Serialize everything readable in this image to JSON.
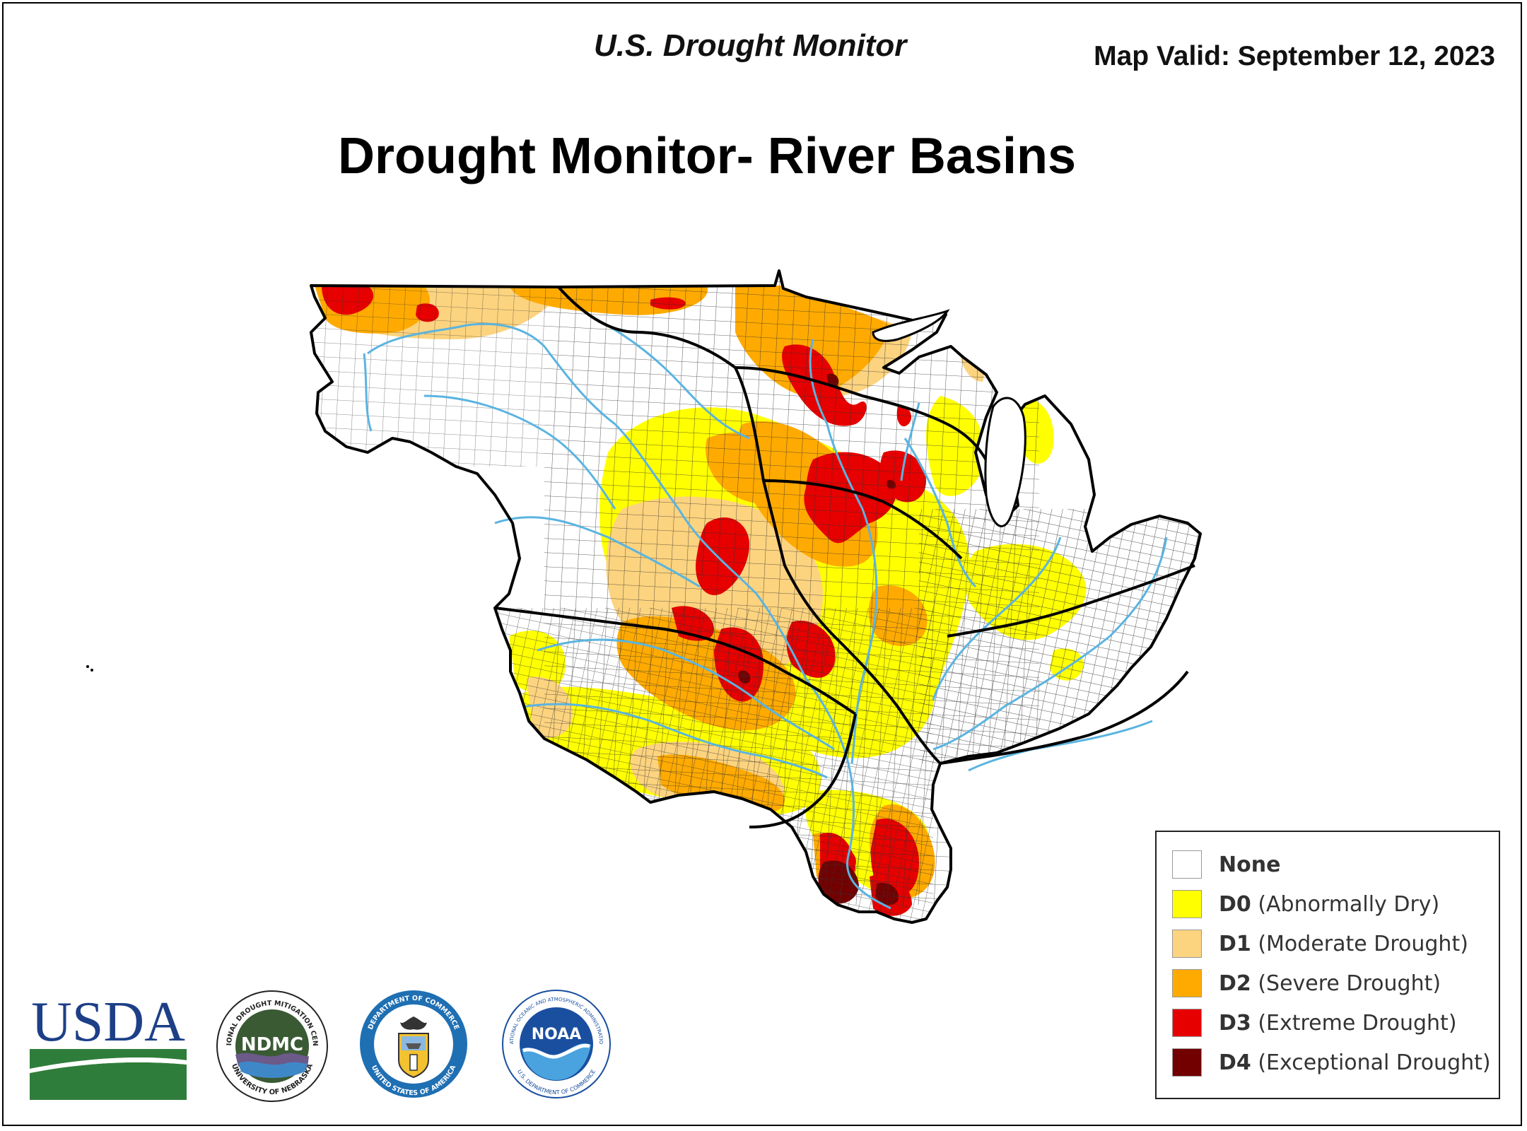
{
  "header": {
    "product": "U.S. Drought Monitor",
    "valid": "Map Valid: September 12, 2023",
    "title": "Drought Monitor- River Basins"
  },
  "legend": {
    "items": [
      {
        "code": "",
        "label": "None",
        "color": "#ffffff"
      },
      {
        "code": "D0",
        "label": "(Abnormally Dry)",
        "color": "#ffff00"
      },
      {
        "code": "D1",
        "label": "(Moderate Drought)",
        "color": "#fcd37f"
      },
      {
        "code": "D2",
        "label": "(Severe Drought)",
        "color": "#ffaa00"
      },
      {
        "code": "D3",
        "label": "(Extreme Drought)",
        "color": "#e60000"
      },
      {
        "code": "D4",
        "label": "(Exceptional Drought)",
        "color": "#730000"
      }
    ]
  },
  "logos": {
    "usda": "USDA",
    "ndmc": "NDMC",
    "ndmc_ring_top": "NATIONAL DROUGHT MITIGATION CENTER",
    "ndmc_ring_bottom": "UNIVERSITY OF NEBRASKA",
    "doc_ring_top": "DEPARTMENT OF COMMERCE",
    "doc_ring_bottom": "UNITED STATES OF AMERICA",
    "noaa": "NOAA",
    "noaa_ring_top": "NATIONAL OCEANIC AND ATMOSPHERIC ADMINISTRATION",
    "noaa_ring_bottom": "U.S. DEPARTMENT OF COMMERCE"
  },
  "colors": {
    "river": "#5ab4e0",
    "basin_border": "#000000",
    "county_line": "#333333",
    "usda_blue": "#1d3f87",
    "usda_green": "#2f7d3a",
    "ndmc_green": "#3a5a34",
    "doc_blue": "#1f6fb3",
    "noaa_blue": "#1a4fa0"
  }
}
